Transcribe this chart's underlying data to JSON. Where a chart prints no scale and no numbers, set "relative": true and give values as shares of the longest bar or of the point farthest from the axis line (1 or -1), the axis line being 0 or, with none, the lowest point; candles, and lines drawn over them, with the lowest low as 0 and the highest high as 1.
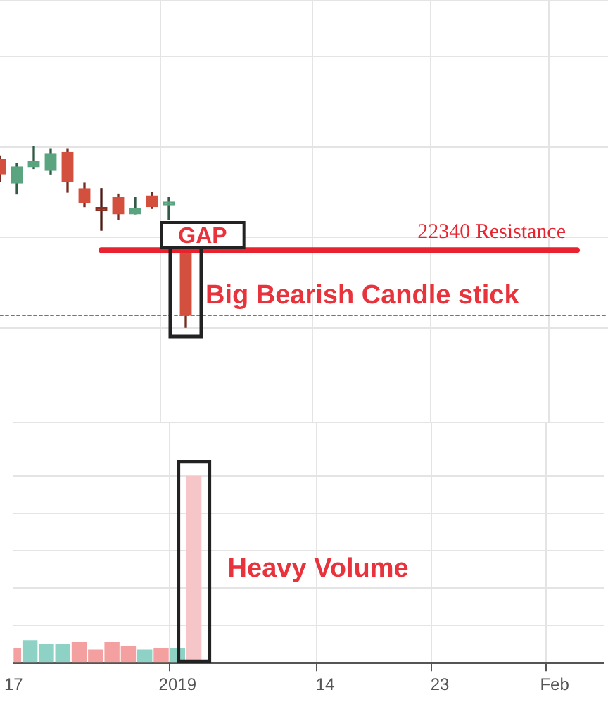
{
  "chart_data": [
    {
      "type": "candlestick",
      "relative": true,
      "grid": true,
      "tick_labels": false,
      "categories": [
        null,
        null,
        null,
        null,
        null,
        null,
        null,
        null,
        null,
        null,
        null,
        null
      ],
      "ohlc": [
        [
          0.93,
          0.95,
          0.81,
          0.85
        ],
        [
          0.8,
          0.91,
          0.74,
          0.89
        ],
        [
          0.89,
          1,
          0.88,
          0.92
        ],
        [
          0.87,
          0.99,
          0.85,
          0.96
        ],
        [
          0.97,
          0.99,
          0.75,
          0.81
        ],
        [
          0.77,
          0.8,
          0.67,
          0.69
        ],
        [
          0.66,
          0.77,
          0.54,
          0.65
        ],
        [
          0.72,
          0.74,
          0.6,
          0.63
        ],
        [
          0.63,
          0.72,
          0.63,
          0.66
        ],
        [
          0.73,
          0.75,
          0.66,
          0.67
        ],
        [
          0.68,
          0.72,
          0.6,
          0.69
        ],
        [
          0.41,
          0.42,
          0,
          0.07
        ]
      ],
      "colors": [
        "#d4503e",
        "#5aa57f",
        "#5aa57f",
        "#5aa57f",
        "#d4503e",
        "#d4503e",
        "#8a2e22",
        "#d4503e",
        "#5aa57f",
        "#d4503e",
        "#5aa57f",
        "#d4503e"
      ],
      "ref_lines": [
        {
          "axis": "y",
          "value": 0.43,
          "label": "22340 Resistance",
          "color": "#e8232f",
          "line_style": "solid"
        },
        {
          "axis": "y",
          "value": 0.07,
          "color": "#d4503e",
          "line_style": "dotted"
        }
      ],
      "annotations": [
        "GAP",
        "Big Bearish Candle stick"
      ]
    },
    {
      "type": "bar",
      "relative": true,
      "grid": true,
      "tick_labels": "x",
      "categories": [
        "17",
        null,
        null,
        null,
        null,
        null,
        null,
        null,
        null,
        null,
        "2019",
        null,
        null,
        null,
        null,
        null,
        null,
        null,
        null,
        "14",
        null,
        null,
        null,
        null,
        null,
        null,
        "23",
        null,
        null,
        null,
        null,
        null,
        null,
        "Feb",
        null,
        null,
        null
      ],
      "values": [
        0.08,
        0.12,
        0.1,
        0.1,
        0.11,
        0.07,
        0.11,
        0.09,
        0.07,
        0.08,
        0.08,
        1,
        null,
        null,
        null,
        null,
        null,
        null,
        null,
        null,
        null,
        null,
        null,
        null,
        null,
        null,
        null,
        null,
        null,
        null,
        null,
        null,
        null,
        null,
        null,
        null,
        null
      ],
      "colors": [
        "#f4a0a0",
        "#8ed2c6",
        "#8ed2c6",
        "#8ed2c6",
        "#f4a0a0",
        "#f4a0a0",
        "#f4a0a0",
        "#f4a0a0",
        "#8ed2c6",
        "#f4a0a0",
        "#8ed2c6",
        "#f6c5c7",
        null,
        null,
        null,
        null,
        null,
        null,
        null,
        null,
        null,
        null,
        null,
        null,
        null,
        null,
        null,
        null,
        null,
        null,
        null,
        null,
        null,
        null,
        null,
        null,
        null
      ],
      "annotations": [
        "Heavy Volume"
      ]
    }
  ]
}
